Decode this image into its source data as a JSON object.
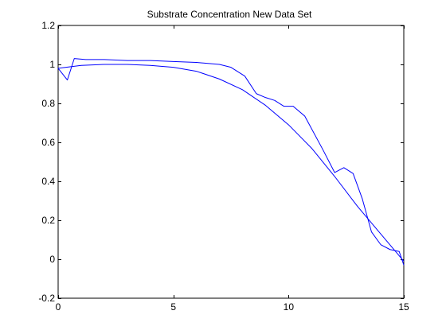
{
  "chart_data": {
    "type": "line",
    "title": "Substrate Concentration New Data Set",
    "xlabel": "",
    "ylabel": "",
    "xlim": [
      0,
      15
    ],
    "ylim": [
      -0.2,
      1.2
    ],
    "xticks": [
      0,
      5,
      10,
      15
    ],
    "xtick_labels": [
      "0",
      "5",
      "10",
      "15"
    ],
    "yticks": [
      -0.2,
      0,
      0.2,
      0.4,
      0.6,
      0.8,
      1,
      1.2
    ],
    "ytick_labels": [
      "-0.2",
      "0",
      "0.2",
      "0.4",
      "0.6",
      "0.8",
      "1",
      "1.2"
    ],
    "grid": false,
    "line_color": "#0000ff",
    "series": [
      {
        "x": [
          0,
          0.4,
          0.7,
          1.2,
          2,
          3,
          4,
          5,
          6,
          7,
          7.5,
          8.1,
          8.6,
          9,
          9.4,
          9.8,
          10.2,
          10.7,
          11.5,
          12,
          12.4,
          12.8,
          13.2,
          13.6,
          14,
          14.4,
          14.8,
          15
        ],
        "y": [
          0.98,
          0.92,
          1.03,
          1.025,
          1.025,
          1.02,
          1.02,
          1.015,
          1.01,
          1.0,
          0.985,
          0.94,
          0.85,
          0.83,
          0.815,
          0.785,
          0.785,
          0.735,
          0.56,
          0.445,
          0.47,
          0.44,
          0.31,
          0.14,
          0.075,
          0.05,
          0.04,
          -0.03
        ]
      },
      {
        "x": [
          0,
          1,
          2,
          3,
          4,
          5,
          6,
          7,
          8,
          9,
          10,
          11,
          12,
          13,
          14,
          15
        ],
        "y": [
          0.98,
          0.995,
          1.0,
          1.0,
          0.995,
          0.985,
          0.965,
          0.925,
          0.87,
          0.79,
          0.69,
          0.57,
          0.425,
          0.27,
          0.13,
          -0.01
        ]
      }
    ]
  }
}
